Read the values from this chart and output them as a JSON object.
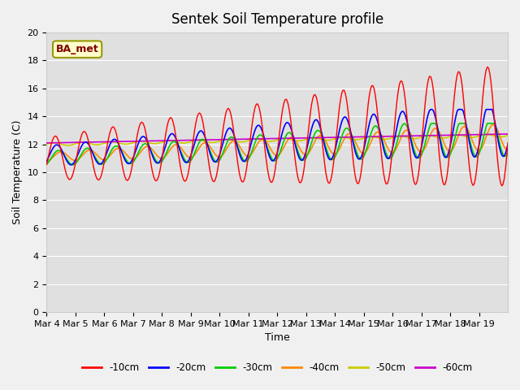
{
  "title": "Sentek Soil Temperature profile",
  "xlabel": "Time",
  "ylabel": "Soil Temperature (C)",
  "annotation": "BA_met",
  "ylim": [
    0,
    20
  ],
  "yticks": [
    0,
    2,
    4,
    6,
    8,
    10,
    12,
    14,
    16,
    18,
    20
  ],
  "xtick_labels": [
    "Mar 4",
    "Mar 5",
    "Mar 6",
    "Mar 7",
    "Mar 8",
    "Mar 9",
    "Mar 10",
    "Mar 11",
    "Mar 12",
    "Mar 13",
    "Mar 14",
    "Mar 15",
    "Mar 16",
    "Mar 17",
    "Mar 18",
    "Mar 19"
  ],
  "series_colors": {
    "-10cm": "#ff0000",
    "-20cm": "#0000ff",
    "-30cm": "#00cc00",
    "-40cm": "#ff8800",
    "-50cm": "#cccc00",
    "-60cm": "#cc00cc"
  },
  "fig_facecolor": "#f0f0f0",
  "plot_bg_color": "#e0e0e0",
  "grid_color": "#ffffff",
  "n_days": 16,
  "pts_per_day": 24
}
